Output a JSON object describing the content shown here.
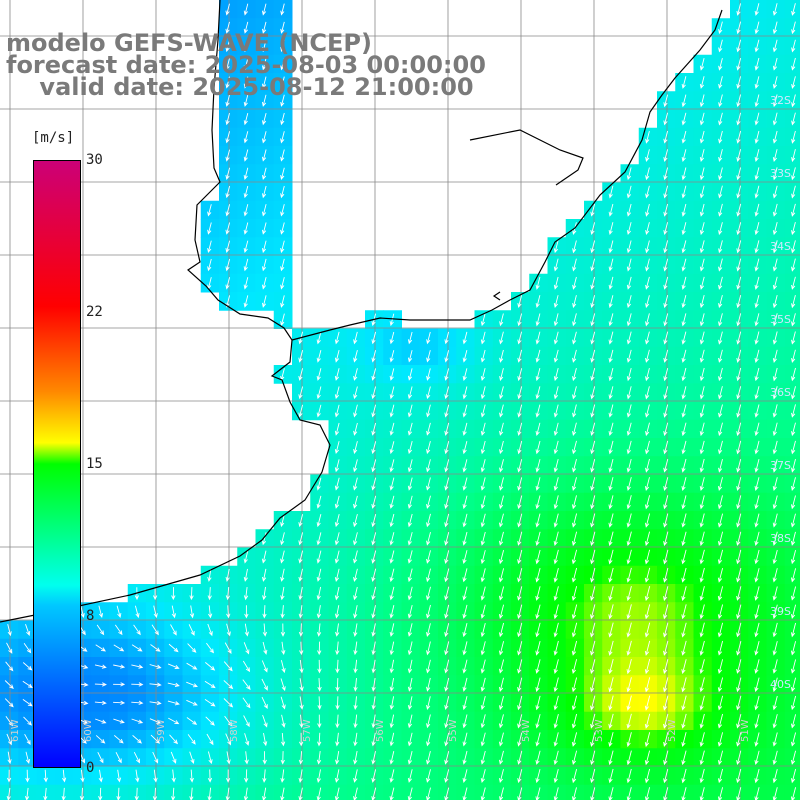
{
  "title": {
    "line1": "modelo GEFS-WAVE (NCEP)",
    "line2": "forecast date: 2025-08-03 00:00:00",
    "line3": "    valid date: 2025-08-12 21:00:00"
  },
  "colorbar": {
    "unit": "[m/s]",
    "ticks": [
      "30",
      "22",
      "15",
      "8",
      "0"
    ],
    "tick_values": [
      30,
      22,
      15,
      8,
      0
    ],
    "range": [
      0,
      30
    ],
    "colors": [
      "#0000ff",
      "#00c8ff",
      "#00ffee",
      "#00ff00",
      "#ffff00",
      "#ff8800",
      "#ff0000",
      "#cc0077"
    ]
  },
  "lat_labels": [
    "32S",
    "33S",
    "34S",
    "35S",
    "36S",
    "37S",
    "38S",
    "39S",
    "40S"
  ],
  "lon_labels": [
    "61W",
    "60W",
    "59W",
    "58W",
    "57W",
    "56W",
    "55W",
    "54W",
    "53W",
    "52W",
    "51W"
  ],
  "field": {
    "variable": "wind speed",
    "wind_direction": "from north-north-east toward south-south-west over most of the sea; weaker westerly flow near the southern coast",
    "land_color": "#ffffff",
    "grid_color": "#888888",
    "coast_color": "#000000",
    "arrow_color": "#ffffff"
  }
}
